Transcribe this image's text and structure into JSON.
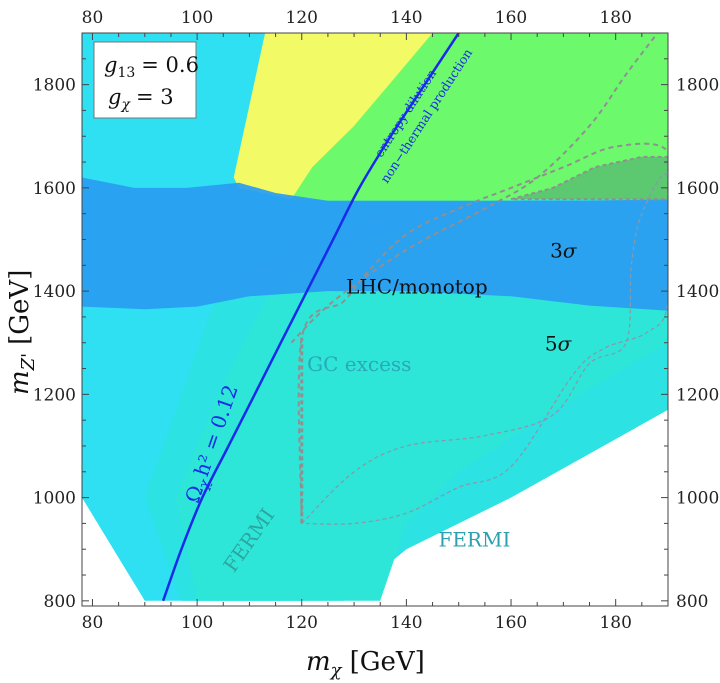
{
  "chart_data": {
    "type": "area",
    "title": "",
    "xlabel": {
      "symbol": "m",
      "sub": "χ",
      "unit": "[GeV]"
    },
    "ylabel": {
      "symbol": "m",
      "sub": "Z'",
      "unit": "[GeV]"
    },
    "xlim": [
      78,
      190
    ],
    "ylim": [
      790,
      1900
    ],
    "xticks": [
      80,
      100,
      120,
      140,
      160,
      180
    ],
    "yticks": [
      800,
      1000,
      1200,
      1400,
      1600,
      1800
    ],
    "legend": {
      "lines": [
        {
          "sym": "g",
          "sub": "13",
          "value": "= 0.6"
        },
        {
          "sym": "g",
          "sub": "χ",
          "value": "= 3"
        }
      ]
    },
    "colors": {
      "fermi_outer": "#2ee0f2",
      "fermi_mid": "#2ce2e2",
      "fermi_inner": "#2ee6d8",
      "lhc": "#2a9cf2",
      "green": "#6cfa6c",
      "yellow": "#f2fa66",
      "overlap": "#5cc870",
      "relic": "#1a2ae8",
      "gc_dash": "#8899aa",
      "grey_dash": "#909090"
    },
    "relic_curve": {
      "label": "Ω_χh² = 0.12",
      "label_parts": {
        "omega": "Ω",
        "sub": "χ",
        "rest": "h² = 0.12"
      },
      "above_label_1": "entropy dilution",
      "above_label_2": "non−thermal production",
      "points": [
        [
          93.5,
          800
        ],
        [
          97,
          900
        ],
        [
          101,
          1000
        ],
        [
          106,
          1100
        ],
        [
          111,
          1200
        ],
        [
          116,
          1300
        ],
        [
          121,
          1400
        ],
        [
          126,
          1500
        ],
        [
          131,
          1600
        ],
        [
          137,
          1700
        ],
        [
          143.5,
          1800
        ],
        [
          150,
          1900
        ]
      ]
    },
    "fermi_regions": [
      {
        "name": "FERMI outer",
        "boundary": [
          [
            90,
            800
          ],
          [
            78,
            1000
          ],
          [
            78,
            1900
          ],
          [
            190,
            1900
          ],
          [
            190,
            1250
          ],
          [
            160,
            1100
          ],
          [
            140,
            1000
          ],
          [
            130,
            900
          ],
          [
            120,
            800
          ]
        ]
      },
      {
        "name": "FERMI 5σ",
        "boundary": [
          [
            97,
            800
          ],
          [
            90,
            1000
          ],
          [
            97,
            1200
          ],
          [
            104,
            1400
          ],
          [
            120,
            1500
          ],
          [
            150,
            1600
          ],
          [
            190,
            1600
          ],
          [
            190,
            1170
          ],
          [
            160,
            1000
          ],
          [
            140,
            900
          ],
          [
            128,
            800
          ]
        ]
      },
      {
        "name": "FERMI 3σ",
        "boundary": [
          [
            100,
            800
          ],
          [
            96,
            1000
          ],
          [
            104,
            1200
          ],
          [
            114,
            1400
          ],
          [
            130,
            1500
          ],
          [
            155,
            1560
          ],
          [
            190,
            1560
          ],
          [
            190,
            1300
          ],
          [
            165,
            1150
          ],
          [
            150,
            1050
          ],
          [
            140,
            950
          ],
          [
            135,
            800
          ]
        ]
      }
    ],
    "lhc_band": {
      "label": "LHC/monotop",
      "upper": [
        [
          78,
          1620
        ],
        [
          88,
          1600
        ],
        [
          98,
          1600
        ],
        [
          108,
          1610
        ],
        [
          115,
          1590
        ],
        [
          125,
          1575
        ],
        [
          140,
          1575
        ],
        [
          160,
          1575
        ],
        [
          175,
          1575
        ],
        [
          190,
          1578
        ]
      ],
      "lower": [
        [
          78,
          1370
        ],
        [
          90,
          1365
        ],
        [
          100,
          1370
        ],
        [
          110,
          1390
        ],
        [
          125,
          1400
        ],
        [
          140,
          1400
        ],
        [
          160,
          1390
        ],
        [
          175,
          1372
        ],
        [
          190,
          1362
        ]
      ]
    },
    "green_region": {
      "boundary": [
        [
          113,
          1900
        ],
        [
          145,
          1900
        ],
        [
          190,
          1900
        ],
        [
          190,
          1582
        ],
        [
          155,
          1575
        ],
        [
          125,
          1575
        ],
        [
          118,
          1578
        ]
      ]
    },
    "yellow_region": {
      "boundary": [
        [
          107,
          1620
        ],
        [
          113,
          1900
        ],
        [
          145,
          1900
        ],
        [
          130,
          1720
        ],
        [
          122,
          1640
        ],
        [
          118,
          1578
        ],
        [
          108,
          1600
        ]
      ]
    },
    "overlap_region": {
      "boundary": [
        [
          160,
          1578
        ],
        [
          168,
          1600
        ],
        [
          176,
          1640
        ],
        [
          185,
          1660
        ],
        [
          190,
          1660
        ],
        [
          190,
          1578
        ]
      ]
    },
    "gc_contour": {
      "label": "GC excess",
      "points": [
        [
          120,
          950
        ],
        [
          130,
          1050
        ],
        [
          140,
          1100
        ],
        [
          155,
          1120
        ],
        [
          168,
          1160
        ],
        [
          175,
          1260
        ],
        [
          182,
          1300
        ],
        [
          183,
          1450
        ],
        [
          185,
          1550
        ],
        [
          190,
          1620
        ],
        [
          190,
          1380
        ],
        [
          186,
          1320
        ],
        [
          178,
          1290
        ],
        [
          172,
          1240
        ],
        [
          160,
          1060
        ],
        [
          150,
          1020
        ],
        [
          140,
          970
        ],
        [
          130,
          950
        ],
        [
          120,
          950
        ]
      ]
    },
    "dashed_grey_contour": {
      "points": [
        [
          120,
          950
        ],
        [
          120,
          1310
        ],
        [
          128,
          1380
        ],
        [
          132,
          1430
        ],
        [
          140,
          1510
        ],
        [
          150,
          1560
        ],
        [
          160,
          1600
        ],
        [
          170,
          1640
        ],
        [
          180,
          1680
        ],
        [
          190,
          1670
        ],
        [
          190,
          1540
        ]
      ]
    },
    "dashed_grey_upper": {
      "points": [
        [
          118,
          1300
        ],
        [
          126,
          1380
        ],
        [
          140,
          1480
        ],
        [
          155,
          1560
        ],
        [
          165,
          1620
        ],
        [
          175,
          1720
        ],
        [
          182,
          1820
        ],
        [
          188,
          1900
        ]
      ]
    },
    "annotations": [
      {
        "id": "sigma3",
        "sym": "3",
        "greek": "σ",
        "x": 170,
        "y": 1465
      },
      {
        "id": "sigma5",
        "sym": "5",
        "greek": "σ",
        "x": 169,
        "y": 1285
      },
      {
        "id": "lhc",
        "text": "LHC/monotop",
        "x": 142,
        "y": 1395
      },
      {
        "id": "gc",
        "text": "GC excess",
        "x": 131,
        "y": 1245
      },
      {
        "id": "fermi_right",
        "text": "FERMI",
        "x": 153,
        "y": 905
      },
      {
        "id": "fermi_left",
        "text": "FERMI",
        "x": 111,
        "y": 910,
        "rotate": -55
      }
    ]
  }
}
